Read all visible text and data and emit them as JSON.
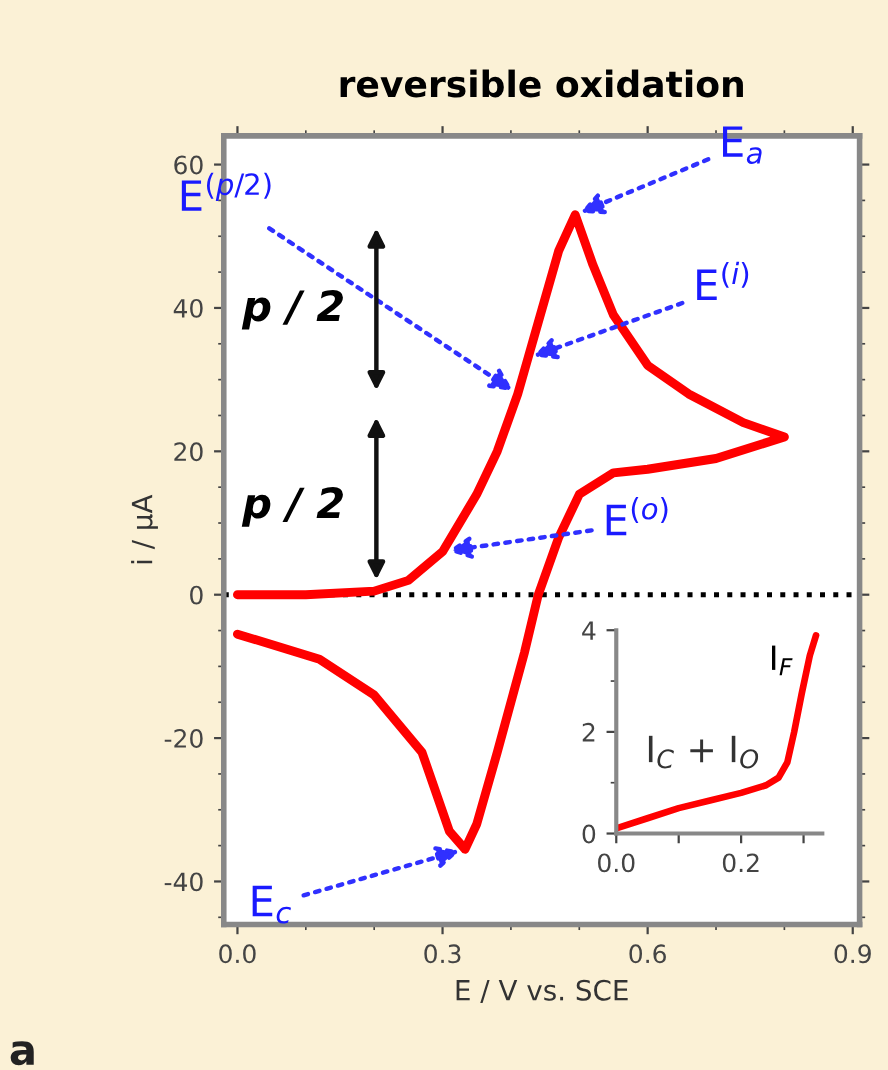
{
  "chart_data": [
    {
      "type": "line",
      "title": "reversible oxidation",
      "xlabel": "E / V vs. SCE",
      "ylabel": "i / μA",
      "series": [
        {
          "color": "#ff0000",
          "x": [
            0.0,
            0.1,
            0.2,
            0.25,
            0.3,
            0.35,
            0.38,
            0.41,
            0.425,
            0.44,
            0.47,
            0.494,
            0.52,
            0.55,
            0.6,
            0.66,
            0.74,
            0.8,
            0.7,
            0.6,
            0.55,
            0.5,
            0.47,
            0.44,
            0.42,
            0.38,
            0.35,
            0.333,
            0.31,
            0.27,
            0.2,
            0.12,
            0.0
          ],
          "values": [
            0,
            0,
            0.5,
            2,
            6,
            14,
            20,
            28,
            33,
            38,
            48,
            53,
            46,
            39,
            32,
            28,
            24,
            22,
            19,
            17.5,
            17,
            14,
            8,
            0,
            -8,
            -22,
            -32,
            -35.5,
            -33,
            -22,
            -14,
            -9,
            -5.5
          ]
        }
      ],
      "xlim": [
        -0.02,
        0.91
      ],
      "ylim": [
        -46,
        64
      ],
      "xticks": [
        {
          "value": 0.0,
          "label": "0.0"
        },
        0.3,
        0.6,
        0.9
      ],
      "yticks": [
        -40,
        -20,
        0,
        20,
        40,
        60
      ],
      "ref_lines": [
        {
          "axis": "y",
          "value": 0,
          "color": "#000000",
          "line_style": "dotted"
        }
      ],
      "annotations": [
        {
          "text": "E$^{(p/2)}$",
          "x": 0.41,
          "y": 28
        },
        {
          "text": "E$_{a}$",
          "x": 0.494,
          "y": 53
        },
        {
          "text": "E$^{(i)}$",
          "x": 0.425,
          "y": 33
        },
        {
          "text": "E$^{(o)}$",
          "x": 0.3,
          "y": 6
        },
        {
          "text": "E$_{c}$",
          "x": 0.333,
          "y": -35.5
        },
        "p / 2",
        "p / 2",
        "a"
      ],
      "grid": false,
      "legend": false
    },
    {
      "type": "line",
      "series": [
        {
          "color": "#ff0000",
          "x": [
            0.0,
            0.05,
            0.1,
            0.15,
            0.2,
            0.24,
            0.26,
            0.274,
            0.285,
            0.297,
            0.31,
            0.32
          ],
          "values": [
            0.1,
            0.3,
            0.5,
            0.65,
            0.8,
            0.95,
            1.1,
            1.4,
            2.0,
            2.75,
            3.5,
            3.9
          ]
        }
      ],
      "xlim": [
        0,
        0.33
      ],
      "ylim": [
        0,
        4
      ],
      "xticks": [
        {
          "value": 0.0,
          "label": "0.0"
        },
        {
          "value": 0.1,
          "label": null
        },
        0.2,
        {
          "value": 0.3,
          "label": null
        }
      ],
      "yticks": [
        0,
        2,
        4
      ],
      "annotations": [
        "I$_{F}$",
        "I$_{C}$ + I$_{O}$"
      ],
      "grid": false,
      "legend": false
    }
  ]
}
